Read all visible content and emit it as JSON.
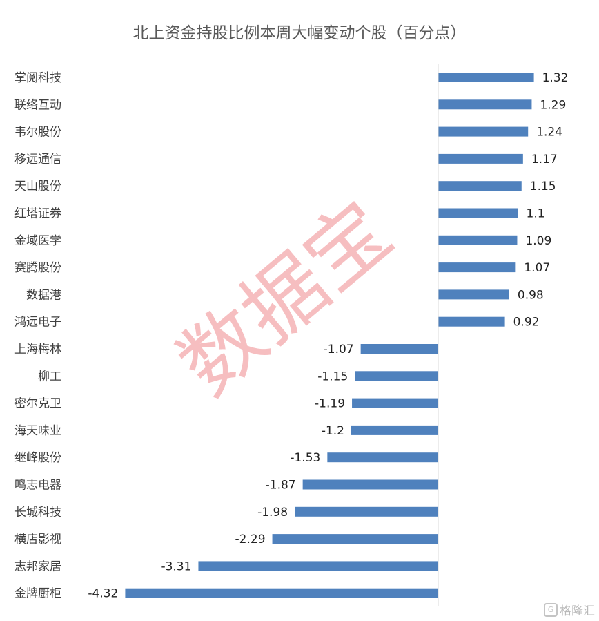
{
  "chart_data": {
    "type": "bar",
    "orientation": "horizontal",
    "title": "北上资金持股比例本周大幅变动个股（百分点）",
    "categories": [
      "掌阅科技",
      "联络互动",
      "韦尔股份",
      "移远通信",
      "天山股份",
      "红塔证券",
      "金域医学",
      "赛腾股份",
      "数据港",
      "鸿远电子",
      "上海梅林",
      "柳工",
      "密尔克卫",
      "海天味业",
      "继峰股份",
      "鸣志电器",
      "长城科技",
      "横店影视",
      "志邦家居",
      "金牌厨柜"
    ],
    "values": [
      1.32,
      1.29,
      1.24,
      1.17,
      1.15,
      1.1,
      1.09,
      1.07,
      0.98,
      0.92,
      -1.07,
      -1.15,
      -1.19,
      -1.2,
      -1.53,
      -1.87,
      -1.98,
      -2.29,
      -3.31,
      -4.32
    ],
    "value_labels": [
      "1.32",
      "1.29",
      "1.24",
      "1.17",
      "1.15",
      "1.1",
      "1.09",
      "1.07",
      "0.98",
      "0.92",
      "-1.07",
      "-1.15",
      "-1.19",
      "-1.2",
      "-1.53",
      "-1.87",
      "-1.98",
      "-2.29",
      "-3.31",
      "-4.32"
    ],
    "bar_color": "#4f81bd",
    "axis_color": "#d9d9d9",
    "grid": false,
    "legend": "none"
  },
  "watermark": {
    "text": "数据宝",
    "color": "#f08a8e"
  },
  "branding": {
    "text": "格隆汇",
    "icon": "gelonghui-logo-icon"
  }
}
